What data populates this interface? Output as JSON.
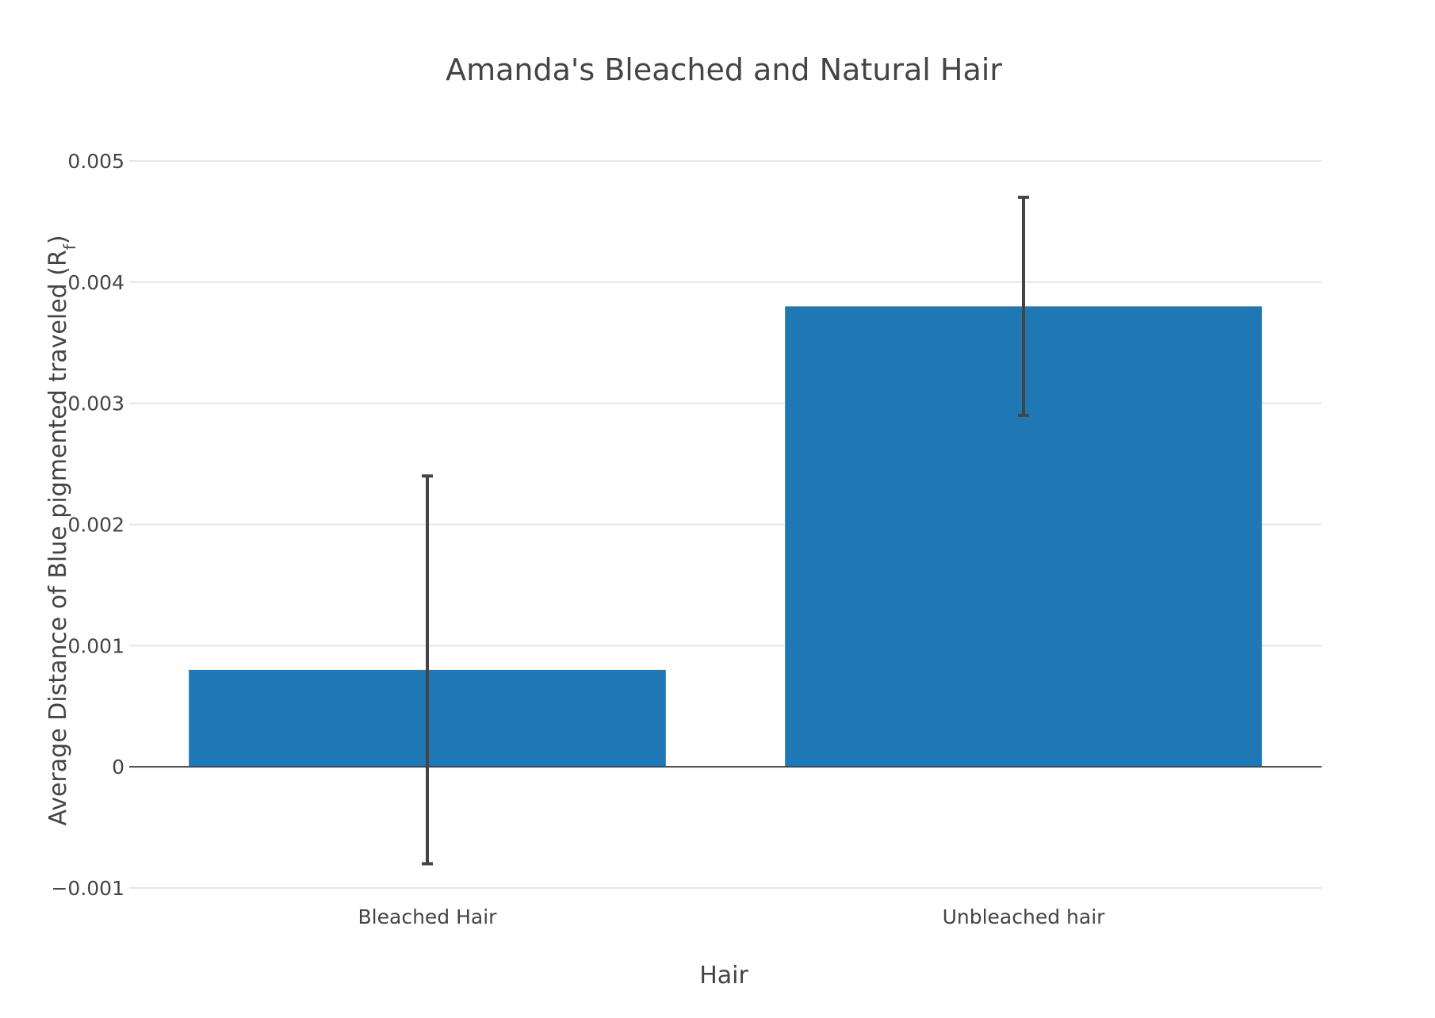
{
  "chart_data": {
    "type": "bar",
    "title": "Amanda's Bleached and Natural Hair",
    "xlabel": "Hair",
    "ylabel": "Average Distance of Blue pigmented traveled (R",
    "ylabel_subscript": "f",
    "ylabel_suffix": ")",
    "categories": [
      "Bleached Hair",
      "Unbleached hair"
    ],
    "values": [
      0.0008,
      0.0038
    ],
    "error_bars": [
      0.0016,
      0.0009
    ],
    "ylim": [
      -0.001,
      0.005
    ],
    "yticks": [
      -0.001,
      0,
      0.001,
      0.002,
      0.003,
      0.004,
      0.005
    ],
    "ytick_labels": [
      "−0.001",
      "0",
      "0.001",
      "0.002",
      "0.003",
      "0.004",
      "0.005"
    ],
    "grid": true,
    "bar_color": "#1f77b4",
    "error_color": "#444444"
  }
}
